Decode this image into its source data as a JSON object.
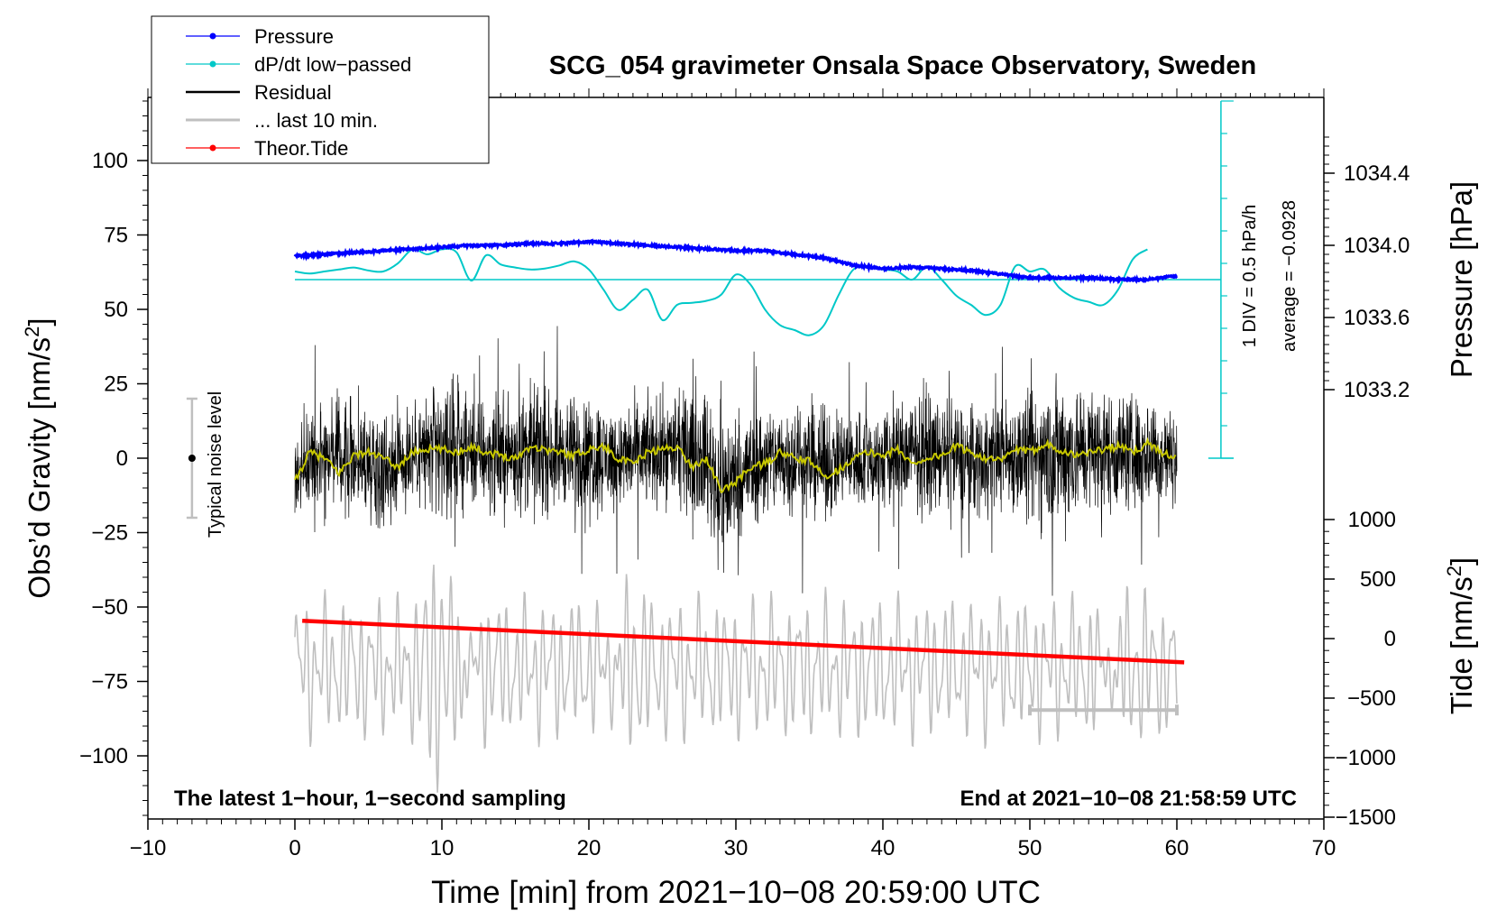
{
  "chart_data": {
    "type": "line",
    "title": "SCG_054 gravimeter Onsala Space Observatory, Sweden",
    "xlabel": "Time [min] from 2021−10−08 20:59:00 UTC",
    "ylabel_left_main": "Obs’d Gravity [nm/s",
    "ylabel_left_sup": "2",
    "ylabel_left_close": "]",
    "ylabel_right_pressure": "Pressure [hPa]",
    "ylabel_right_tide_main": "Tide [nm/s",
    "ylabel_right_tide_sup": "2",
    "ylabel_right_tide_close": "]",
    "footer_left": "The latest 1−hour, 1−second sampling",
    "footer_right": "End at 2021−10−08 21:58:59 UTC",
    "noise_label": "Typical noise level",
    "div_label": "1 DIV = 0.5 hPa/h",
    "avg_label": "average = −0.0928",
    "xlim": [
      -10,
      70
    ],
    "ylim_gravity": [
      -120,
      120
    ],
    "ylim_pressure": [
      1033.2,
      1034.4
    ],
    "ylim_tide": [
      -1500,
      1000
    ],
    "x_ticks": [
      {
        "v": -10,
        "label": "−10"
      },
      {
        "v": 0,
        "label": "0"
      },
      {
        "v": 10,
        "label": "10"
      },
      {
        "v": 20,
        "label": "20"
      },
      {
        "v": 30,
        "label": "30"
      },
      {
        "v": 40,
        "label": "40"
      },
      {
        "v": 50,
        "label": "50"
      },
      {
        "v": 60,
        "label": "60"
      },
      {
        "v": 70,
        "label": "70"
      }
    ],
    "y_ticks_gravity": [
      {
        "v": 100,
        "label": "100"
      },
      {
        "v": 75,
        "label": "75"
      },
      {
        "v": 50,
        "label": "50"
      },
      {
        "v": 25,
        "label": "25"
      },
      {
        "v": 0,
        "label": "0"
      },
      {
        "v": -25,
        "label": "−25"
      },
      {
        "v": -50,
        "label": "−50"
      },
      {
        "v": -75,
        "label": "−75"
      },
      {
        "v": -100,
        "label": "−100"
      }
    ],
    "y_ticks_pressure": [
      {
        "v": 1034.4,
        "label": "1034.4"
      },
      {
        "v": 1034.0,
        "label": "1034.0"
      },
      {
        "v": 1033.6,
        "label": "1033.6"
      },
      {
        "v": 1033.2,
        "label": "1033.2"
      }
    ],
    "y_ticks_tide": [
      {
        "v": 1000,
        "label": "1000"
      },
      {
        "v": 500,
        "label": "500"
      },
      {
        "v": 0,
        "label": "0"
      },
      {
        "v": -500,
        "label": "−500"
      },
      {
        "v": -1000,
        "label": "−1000"
      },
      {
        "v": -1500,
        "label": "−1500"
      }
    ],
    "legend": [
      {
        "name": "Pressure",
        "color": "#0000ff",
        "marker": true
      },
      {
        "name": "dP/dt low−passed",
        "color": "#00c8c8",
        "marker": true
      },
      {
        "name": "Residual",
        "color": "#000000",
        "marker": false
      },
      {
        "name": "... last 10 min.",
        "color": "#bfbfbf",
        "marker": false
      },
      {
        "name": "Theor.Tide",
        "color": "#ff0000",
        "marker": true
      }
    ],
    "legend_position": "top-left",
    "series": [
      {
        "name": "Pressure",
        "color": "#0000ff",
        "axis": "pressure",
        "x": [
          0,
          2,
          4,
          6,
          8,
          10,
          12,
          14,
          16,
          18,
          20,
          22,
          24,
          26,
          28,
          30,
          32,
          34,
          36,
          38,
          40,
          42,
          44,
          46,
          48,
          50,
          52,
          54,
          56,
          58,
          60
        ],
        "y": [
          1033.94,
          1033.95,
          1033.96,
          1033.97,
          1033.98,
          1033.99,
          1034.0,
          1034.0,
          1034.01,
          1034.01,
          1034.02,
          1034.01,
          1034.0,
          1033.99,
          1033.98,
          1033.97,
          1033.97,
          1033.95,
          1033.93,
          1033.89,
          1033.87,
          1033.88,
          1033.87,
          1033.86,
          1033.84,
          1033.82,
          1033.82,
          1033.82,
          1033.81,
          1033.81,
          1033.83
        ]
      },
      {
        "name": "dP/dt low−passed",
        "color": "#00c8c8",
        "axis": "dpdt",
        "x": [
          0,
          1,
          2,
          3,
          4,
          5,
          6,
          7,
          8,
          9,
          10,
          11,
          12,
          13,
          14,
          15,
          16,
          17,
          18,
          19,
          20,
          21,
          22,
          23,
          24,
          25,
          26,
          27,
          28,
          29,
          30,
          31,
          32,
          33,
          34,
          35,
          36,
          37,
          38,
          39,
          40,
          41,
          42,
          43,
          44,
          45,
          46,
          47,
          48,
          49,
          50,
          51,
          52,
          53,
          54,
          55,
          56,
          57,
          58
        ],
        "y": [
          0.8,
          0.6,
          0.8,
          1.0,
          1.2,
          0.9,
          0.8,
          1.6,
          3.0,
          2.5,
          3.0,
          2.7,
          -0.1,
          2.4,
          1.5,
          1.2,
          1.0,
          1.1,
          1.4,
          1.8,
          1.0,
          -1.0,
          -3.0,
          -2.0,
          -1.0,
          -4.0,
          -2.5,
          -2.3,
          -2.1,
          -1.5,
          0.5,
          -0.5,
          -3.0,
          -4.5,
          -5.0,
          -5.5,
          -4.5,
          -1.5,
          1.0,
          1.2,
          1.0,
          0.8,
          0.0,
          1.3,
          0.0,
          -1.6,
          -2.5,
          -3.5,
          -2.5,
          1.3,
          0.8,
          1.0,
          -0.8,
          -1.8,
          -2.2,
          -2.5,
          -1.0,
          2.0,
          3.0
        ]
      },
      {
        "name": "Residual",
        "color": "#000000",
        "axis": "gravity",
        "x": [
          0,
          2,
          4,
          6,
          8,
          10,
          12,
          14,
          16,
          18,
          20,
          22,
          24,
          26,
          28,
          29,
          30,
          32,
          34,
          36,
          38,
          40,
          42,
          44,
          46,
          48,
          50,
          52,
          54,
          56,
          58,
          60
        ],
        "y": [
          -5,
          3,
          0,
          -2,
          2,
          3,
          2,
          1,
          3,
          2,
          1,
          0,
          2,
          3,
          0,
          -12,
          -6,
          -1,
          0,
          -2,
          0,
          -1,
          2,
          1,
          -1,
          2,
          0,
          2,
          3,
          2,
          2,
          0
        ],
        "amplitude": [
          25,
          28,
          30,
          32,
          30,
          38,
          30,
          32,
          35,
          30,
          33,
          28,
          30,
          30,
          35,
          48,
          35,
          32,
          30,
          30,
          28,
          30,
          33,
          30,
          32,
          30,
          35,
          45,
          35,
          33,
          32,
          25
        ]
      },
      {
        "name": "Residual smoothed",
        "color": "#c8c800",
        "axis": "gravity",
        "x": [
          0,
          1,
          2,
          3,
          4,
          5,
          6,
          7,
          8,
          9,
          10,
          11,
          12,
          13,
          14,
          15,
          16,
          17,
          18,
          19,
          20,
          21,
          22,
          23,
          24,
          25,
          26,
          27,
          28,
          29,
          30,
          31,
          32,
          33,
          34,
          35,
          36,
          37,
          38,
          39,
          40,
          41,
          42,
          43,
          44,
          45,
          46,
          47,
          48,
          49,
          50,
          51,
          52,
          53,
          54,
          55,
          56,
          57,
          58,
          59,
          60
        ],
        "y": [
          -8,
          2,
          0,
          -5,
          1,
          2,
          0,
          -3,
          2,
          3,
          3,
          2,
          4,
          2,
          1,
          0,
          4,
          3,
          2,
          1,
          3,
          4,
          0,
          -2,
          2,
          3,
          4,
          -3,
          0,
          -11,
          -8,
          -3,
          -2,
          2,
          0,
          -1,
          -6,
          -4,
          0,
          2,
          1,
          3,
          -2,
          0,
          1,
          4,
          2,
          0,
          -1,
          3,
          2,
          5,
          3,
          1,
          2,
          3,
          4,
          2,
          5,
          2,
          0
        ]
      },
      {
        "name": "... last 10 min.",
        "color": "#bfbfbf",
        "axis": "tide",
        "x_start": 0,
        "x_end": 60,
        "center": -250,
        "amplitude": 620,
        "max": 1400,
        "min": -1400
      },
      {
        "name": "Theor.Tide",
        "color": "#ff0000",
        "axis": "tide",
        "x": [
          0.5,
          60.5
        ],
        "y": [
          150,
          -200
        ]
      }
    ],
    "annotations": {
      "noise_bar": {
        "x": -7,
        "y": 0,
        "low": -20,
        "high": 20
      },
      "ten_min_bar": {
        "x_start": 50,
        "x_end": 60,
        "y": -600
      },
      "dpdt_zero_line": {
        "y_gravity": 60
      },
      "div_scale": {
        "x": 63,
        "top_gravity": 120,
        "bottom_gravity": 0,
        "ticks": 11
      }
    }
  }
}
